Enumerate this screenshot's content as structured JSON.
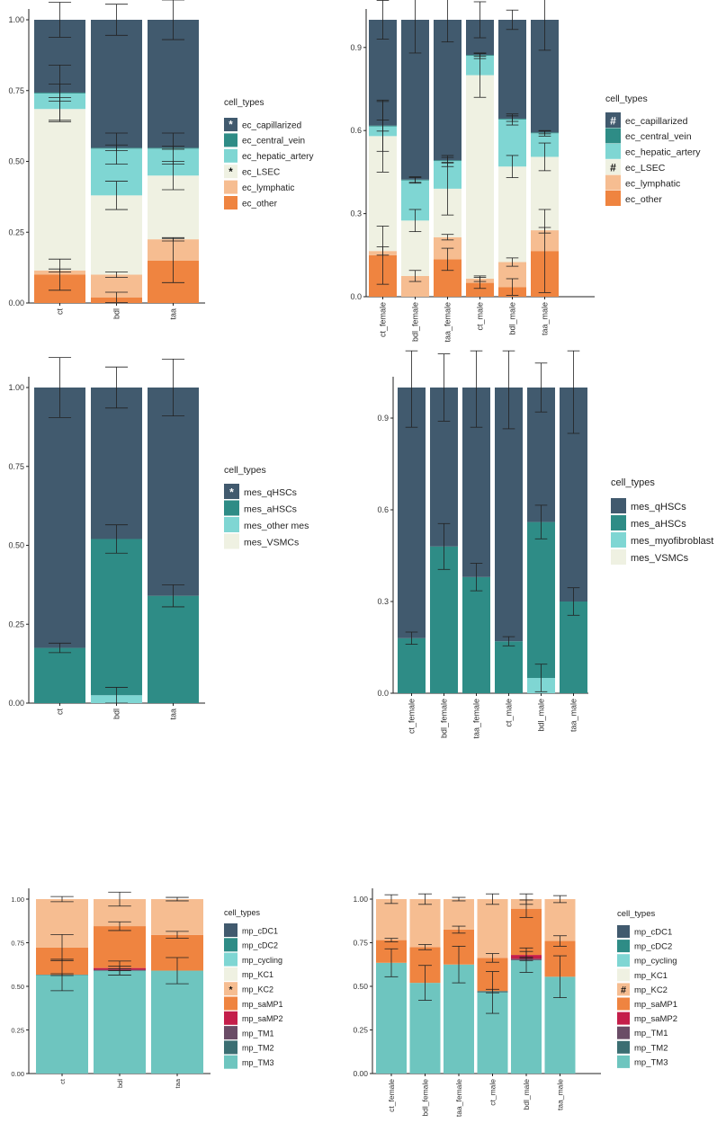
{
  "colors": {
    "ec_capillarized": "#415a6e",
    "ec_central_vein": "#2e8c86",
    "ec_hepatic_artery": "#7fd6d3",
    "ec_LSEC": "#eff1e2",
    "ec_lymphatic": "#f6bd91",
    "ec_other": "#ef8440",
    "mes_qHSCs": "#415a6e",
    "mes_aHSCs": "#2e8c86",
    "mes_other mes": "#7fd6d3",
    "mes_myofibroblast": "#7fd6d3",
    "mes_VSMCs": "#eff1e2",
    "mp_cDC1": "#415a6e",
    "mp_cDC2": "#2e8c86",
    "mp_cycling": "#7fd6d3",
    "mp_KC1": "#eff1e2",
    "mp_KC2": "#f6bd91",
    "mp_saMP1": "#ef8440",
    "mp_saMP2": "#c41e4a",
    "mp_TM1": "#6a4c66",
    "mp_TM2": "#3b6e72",
    "mp_TM3": "#6ec5bf"
  },
  "chart_data": [
    {
      "type": "bar",
      "id": "ec_condition",
      "legend_title": "cell_types",
      "categories": [
        "ct",
        "bdl",
        "taa"
      ],
      "ylim": [
        0,
        1.0
      ],
      "yticks": [
        0,
        0.25,
        0.5,
        0.75,
        1.0
      ],
      "ytick_labels": [
        "0.00",
        "0.25",
        "0.50",
        "0.75",
        "1.00"
      ],
      "series": [
        {
          "name": "ec_other",
          "values": [
            0.1,
            0.02,
            0.15
          ],
          "errors": [
            0.055,
            0.018,
            0.078
          ]
        },
        {
          "name": "ec_lymphatic",
          "values": [
            0.015,
            0.08,
            0.075
          ],
          "errors": [
            0.005,
            0.01,
            0.006
          ]
        },
        {
          "name": "ec_LSEC",
          "values": [
            0.57,
            0.28,
            0.225
          ],
          "errors": [
            0.04,
            0.05,
            0.05
          ]
        },
        {
          "name": "ec_hepatic_artery",
          "values": [
            0.055,
            0.165,
            0.095
          ],
          "errors": [
            0.1,
            0.055,
            0.055
          ]
        },
        {
          "name": "ec_central_vein",
          "values": [
            0.003,
            0.003,
            0.003
          ],
          "errors": [
            0.03,
            0.01,
            0.005
          ]
        },
        {
          "name": "ec_capillarized",
          "values": [
            0.257,
            0.452,
            0.452
          ],
          "errors": [
            0.062,
            0.055,
            0.07
          ]
        }
      ],
      "legend": [
        {
          "label": "ec_capillarized",
          "mark": "*"
        },
        {
          "label": "ec_central_vein",
          "mark": ""
        },
        {
          "label": "ec_hepatic_artery",
          "mark": ""
        },
        {
          "label": "ec_LSEC",
          "mark": "*"
        },
        {
          "label": "ec_lymphatic",
          "mark": ""
        },
        {
          "label": "ec_other",
          "mark": ""
        }
      ]
    },
    {
      "type": "bar",
      "id": "ec_sex",
      "legend_title": "cell_types",
      "categories": [
        "ct_female",
        "bdl_female",
        "taa_female",
        "ct_male",
        "bdl_male",
        "taa_male"
      ],
      "ylim": [
        0,
        1.0
      ],
      "yticks": [
        0,
        0.3,
        0.6,
        0.9
      ],
      "ytick_labels": [
        "0.0",
        "0.3",
        "0.6",
        "0.9"
      ],
      "series": [
        {
          "name": "ec_other",
          "values": [
            0.15,
            0.0,
            0.135,
            0.05,
            0.035,
            0.165
          ],
          "errors": [
            0.105,
            0.0,
            0.04,
            0.02,
            0.03,
            0.15
          ]
        },
        {
          "name": "ec_lymphatic",
          "values": [
            0.015,
            0.075,
            0.08,
            0.015,
            0.09,
            0.075
          ],
          "errors": [
            0.015,
            0.02,
            0.01,
            0.01,
            0.015,
            0.01
          ]
        },
        {
          "name": "ec_LSEC",
          "values": [
            0.415,
            0.2,
            0.175,
            0.735,
            0.345,
            0.265
          ],
          "errors": [
            0.13,
            0.04,
            0.095,
            0.08,
            0.04,
            0.05
          ]
        },
        {
          "name": "ec_hepatic_artery",
          "values": [
            0.035,
            0.145,
            0.1,
            0.07,
            0.17,
            0.085
          ],
          "errors": [
            0.09,
            0.01,
            0.02,
            0.01,
            0.02,
            0.01
          ]
        },
        {
          "name": "ec_central_vein",
          "values": [
            0.003,
            0.003,
            0.003,
            0.003,
            0.003,
            0.003
          ],
          "errors": [
            0.02,
            0.01,
            0.01,
            0.005,
            0.01,
            0.005
          ]
        },
        {
          "name": "ec_capillarized",
          "values": [
            0.382,
            0.577,
            0.507,
            0.127,
            0.357,
            0.407
          ],
          "errors": [
            0.07,
            0.12,
            0.08,
            0.065,
            0.035,
            0.11
          ]
        }
      ],
      "legend": [
        {
          "label": "ec_capillarized",
          "mark": "#"
        },
        {
          "label": "ec_central_vein",
          "mark": ""
        },
        {
          "label": "ec_hepatic_artery",
          "mark": ""
        },
        {
          "label": "ec_LSEC",
          "mark": "#"
        },
        {
          "label": "ec_lymphatic",
          "mark": ""
        },
        {
          "label": "ec_other",
          "mark": ""
        }
      ]
    },
    {
      "type": "bar",
      "id": "mes_condition",
      "legend_title": "cell_types",
      "categories": [
        "ct",
        "bdl",
        "taa"
      ],
      "ylim": [
        0,
        1.0
      ],
      "yticks": [
        0,
        0.25,
        0.5,
        0.75,
        1.0
      ],
      "ytick_labels": [
        "0.00",
        "0.25",
        "0.50",
        "0.75",
        "1.00"
      ],
      "series": [
        {
          "name": "mes_other mes",
          "values": [
            0.0,
            0.025,
            0.0
          ],
          "errors": [
            0,
            0.025,
            0
          ]
        },
        {
          "name": "mes_aHSCs",
          "values": [
            0.175,
            0.495,
            0.34
          ],
          "errors": [
            0.015,
            0.045,
            0.035
          ]
        },
        {
          "name": "mes_qHSCs",
          "values": [
            0.825,
            0.48,
            0.66
          ],
          "errors": [
            0.095,
            0.065,
            0.09
          ]
        }
      ],
      "legend": [
        {
          "label": "mes_qHSCs",
          "mark": "*"
        },
        {
          "label": "mes_aHSCs",
          "mark": ""
        },
        {
          "label": "mes_other mes",
          "mark": ""
        },
        {
          "label": "mes_VSMCs",
          "mark": ""
        }
      ]
    },
    {
      "type": "bar",
      "id": "mes_sex",
      "legend_title": "cell_types",
      "categories": [
        "ct_female",
        "bdl_female",
        "taa_female",
        "ct_male",
        "bdl_male",
        "taa_male"
      ],
      "ylim": [
        0,
        1.0
      ],
      "yticks": [
        0,
        0.3,
        0.6,
        0.9
      ],
      "ytick_labels": [
        "0.0",
        "0.3",
        "0.6",
        "0.9"
      ],
      "series": [
        {
          "name": "mes_myofibroblast",
          "values": [
            0.0,
            0.0,
            0.0,
            0.0,
            0.05,
            0.0
          ],
          "errors": [
            0,
            0,
            0,
            0,
            0.045,
            0
          ]
        },
        {
          "name": "mes_aHSCs",
          "values": [
            0.18,
            0.48,
            0.38,
            0.17,
            0.51,
            0.3
          ],
          "errors": [
            0.02,
            0.075,
            0.045,
            0.015,
            0.055,
            0.045
          ]
        },
        {
          "name": "mes_qHSCs",
          "values": [
            0.82,
            0.52,
            0.62,
            0.83,
            0.44,
            0.7
          ],
          "errors": [
            0.13,
            0.11,
            0.13,
            0.135,
            0.08,
            0.15
          ]
        }
      ],
      "legend": [
        {
          "label": "mes_qHSCs",
          "mark": ""
        },
        {
          "label": "mes_aHSCs",
          "mark": ""
        },
        {
          "label": "mes_myofibroblast",
          "mark": ""
        },
        {
          "label": "mes_VSMCs",
          "mark": ""
        }
      ]
    },
    {
      "type": "bar",
      "id": "mp_condition",
      "legend_title": "cell_types",
      "categories": [
        "ct",
        "bdl",
        "taa"
      ],
      "ylim": [
        0,
        1.0
      ],
      "yticks": [
        0,
        0.25,
        0.5,
        0.75,
        1.0
      ],
      "ytick_labels": [
        "0.00",
        "0.25",
        "0.50",
        "0.75",
        "1.00"
      ],
      "series": [
        {
          "name": "mp_TM3",
          "values": [
            0.565,
            0.59,
            0.59
          ],
          "errors": [
            0.09,
            0.025,
            0.075
          ]
        },
        {
          "name": "mp_TM2",
          "values": [
            0.002,
            0.0,
            0.0
          ],
          "errors": [
            0.005,
            0,
            0
          ]
        },
        {
          "name": "mp_TM1",
          "values": [
            0.0,
            0.005,
            0.0
          ],
          "errors": [
            0,
            0.005,
            0
          ]
        },
        {
          "name": "mp_saMP2",
          "values": [
            0.0,
            0.01,
            0.0
          ],
          "errors": [
            0,
            0.04,
            0
          ]
        },
        {
          "name": "mp_saMP1",
          "values": [
            0.155,
            0.24,
            0.205
          ],
          "errors": [
            0.075,
            0.025,
            0.02
          ]
        },
        {
          "name": "mp_KC2",
          "values": [
            0.278,
            0.155,
            0.205
          ],
          "errors": [
            0.015,
            0.04,
            0.01
          ]
        }
      ],
      "legend": [
        {
          "label": "mp_cDC1",
          "mark": ""
        },
        {
          "label": "mp_cDC2",
          "mark": ""
        },
        {
          "label": "mp_cycling",
          "mark": ""
        },
        {
          "label": "mp_KC1",
          "mark": ""
        },
        {
          "label": "mp_KC2",
          "mark": "*"
        },
        {
          "label": "mp_saMP1",
          "mark": ""
        },
        {
          "label": "mp_saMP2",
          "mark": ""
        },
        {
          "label": "mp_TM1",
          "mark": ""
        },
        {
          "label": "mp_TM2",
          "mark": ""
        },
        {
          "label": "mp_TM3",
          "mark": ""
        }
      ]
    },
    {
      "type": "bar",
      "id": "mp_sex",
      "legend_title": "cell_types",
      "categories": [
        "ct_female",
        "bdl_female",
        "taa_female",
        "ct_male",
        "bdl_male",
        "taa_male"
      ],
      "ylim": [
        0,
        1.0
      ],
      "yticks": [
        0,
        0.25,
        0.5,
        0.75,
        1.0
      ],
      "ytick_labels": [
        "0.00",
        "0.25",
        "0.50",
        "0.75",
        "1.00"
      ],
      "series": [
        {
          "name": "mp_TM3",
          "values": [
            0.635,
            0.52,
            0.625,
            0.465,
            0.65,
            0.555
          ],
          "errors": [
            0.08,
            0.1,
            0.105,
            0.12,
            0.07,
            0.12
          ]
        },
        {
          "name": "mp_TM2",
          "values": [
            0.0,
            0.0,
            0.0,
            0.008,
            0.0,
            0.0
          ],
          "errors": [
            0,
            0,
            0,
            0.01,
            0,
            0
          ]
        },
        {
          "name": "mp_TM1",
          "values": [
            0.0,
            0.0,
            0.0,
            0.0,
            0.008,
            0.0
          ],
          "errors": [
            0,
            0,
            0,
            0,
            0.01,
            0
          ]
        },
        {
          "name": "mp_saMP2",
          "values": [
            0.0,
            0.0,
            0.0,
            0.0,
            0.022,
            0.0
          ],
          "errors": [
            0,
            0,
            0,
            0,
            0.02,
            0
          ]
        },
        {
          "name": "mp_saMP1",
          "values": [
            0.13,
            0.205,
            0.2,
            0.19,
            0.265,
            0.205
          ],
          "errors": [
            0.01,
            0.015,
            0.02,
            0.025,
            0.05,
            0.03
          ]
        },
        {
          "name": "mp_KC2",
          "values": [
            0.235,
            0.275,
            0.175,
            0.337,
            0.055,
            0.24
          ],
          "errors": [
            0.025,
            0.03,
            0.01,
            0.03,
            0.03,
            0.02
          ]
        }
      ],
      "legend": [
        {
          "label": "mp_cDC1",
          "mark": ""
        },
        {
          "label": "mp_cDC2",
          "mark": ""
        },
        {
          "label": "mp_cycling",
          "mark": ""
        },
        {
          "label": "mp_KC1",
          "mark": ""
        },
        {
          "label": "mp_KC2",
          "mark": "#"
        },
        {
          "label": "mp_saMP1",
          "mark": ""
        },
        {
          "label": "mp_saMP2",
          "mark": ""
        },
        {
          "label": "mp_TM1",
          "mark": ""
        },
        {
          "label": "mp_TM2",
          "mark": ""
        },
        {
          "label": "mp_TM3",
          "mark": ""
        }
      ]
    }
  ]
}
